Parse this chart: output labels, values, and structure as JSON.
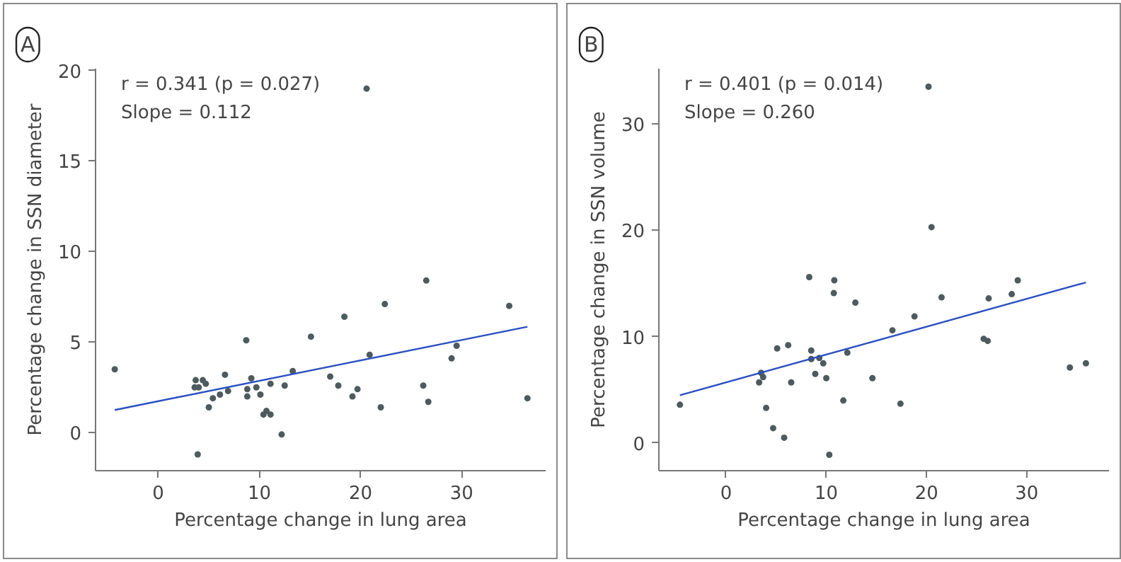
{
  "chart_data": [
    {
      "type": "scatter",
      "title": "A",
      "xlabel": "Percentage change in lung area",
      "ylabel": "Percentage change in SSN diameter",
      "xlim": [
        -6.2,
        38.3
      ],
      "ylim": [
        -2.1,
        20.1
      ],
      "xticks": [
        0,
        10,
        20,
        30
      ],
      "yticks": [
        0,
        5,
        10,
        15,
        20
      ],
      "grid": false,
      "annotations": [
        "r = 0.341 (p = 0.027)",
        "Slope = 0.112"
      ],
      "series": [
        {
          "marker": "circle",
          "color": "#4d5a5e",
          "x": [
            -4.3,
            20.6,
            26.5,
            22.4,
            34.7,
            18.4,
            8.7,
            15.1,
            20.9,
            29.5,
            29.0,
            3.7,
            4.4,
            4.7,
            3.6,
            4.0,
            6.6,
            9.2,
            13.3,
            17.0,
            17.8,
            26.2,
            19.7,
            19.2,
            8.8,
            9.7,
            11.1,
            12.5,
            6.9,
            6.1,
            5.4,
            8.8,
            10.1,
            5.0,
            10.7,
            10.4,
            11.1,
            22.0,
            26.7,
            36.5,
            12.2,
            3.9
          ],
          "values": [
            3.5,
            19.0,
            8.4,
            7.1,
            7.0,
            6.4,
            5.1,
            5.3,
            4.3,
            4.8,
            4.1,
            2.9,
            2.9,
            2.7,
            2.5,
            2.5,
            3.2,
            3.0,
            3.4,
            3.1,
            2.6,
            2.6,
            2.4,
            2.0,
            2.4,
            2.5,
            2.7,
            2.6,
            2.3,
            2.1,
            1.9,
            2.0,
            2.1,
            1.4,
            1.2,
            1.0,
            1.0,
            1.4,
            1.7,
            1.9,
            -0.1,
            -1.2
          ]
        },
        {
          "type": "line",
          "color": "#2a4fc2",
          "x": [
            -4.3,
            36.5
          ],
          "values": [
            1.25,
            5.85
          ]
        }
      ]
    },
    {
      "type": "scatter",
      "title": "B",
      "xlabel": "Percentage change in lung area",
      "ylabel": "Percentage change in SSN volume",
      "xlim": [
        -6.7,
        38.2
      ],
      "ylim": [
        -2.6,
        35.2
      ],
      "xticks": [
        0,
        10,
        20,
        30
      ],
      "yticks": [
        0,
        10,
        20,
        30
      ],
      "grid": false,
      "annotations": [
        "r = 0.401 (p = 0.014)",
        "Slope = 0.260"
      ],
      "series": [
        {
          "marker": "circle",
          "color": "#4d5a5e",
          "x": [
            20.2,
            20.5,
            8.3,
            10.8,
            10.75,
            12.9,
            21.5,
            26.2,
            28.5,
            29.1,
            18.8,
            16.6,
            25.7,
            26.1,
            5.1,
            6.2,
            8.5,
            8.5,
            9.3,
            9.7,
            12.1,
            3.5,
            3.7,
            3.3,
            8.9,
            10.0,
            6.5,
            14.6,
            34.3,
            35.9,
            -4.6,
            11.7,
            17.4,
            4.0,
            4.7,
            5.8,
            10.3
          ],
          "values": [
            33.5,
            20.3,
            15.6,
            15.3,
            14.1,
            13.2,
            13.7,
            13.6,
            14.0,
            15.3,
            11.9,
            10.6,
            9.8,
            9.6,
            8.9,
            9.2,
            8.7,
            7.9,
            8.0,
            7.5,
            8.5,
            6.6,
            6.2,
            5.7,
            6.5,
            6.1,
            5.7,
            6.1,
            7.1,
            7.5,
            3.6,
            4.0,
            3.7,
            3.3,
            1.4,
            0.5,
            -1.1
          ]
        },
        {
          "type": "line",
          "color": "#2a4fc2",
          "x": [
            -4.6,
            35.9
          ],
          "values": [
            4.5,
            15.1
          ]
        }
      ]
    }
  ]
}
